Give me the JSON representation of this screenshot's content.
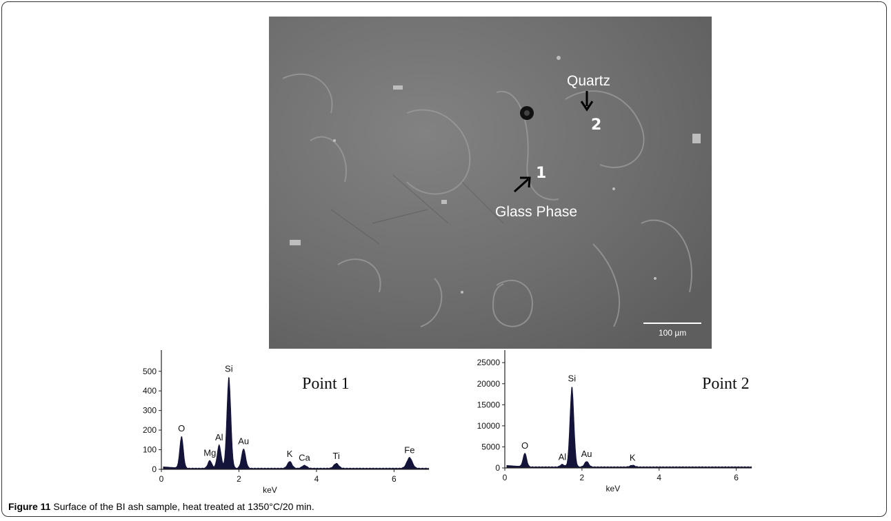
{
  "figure": {
    "caption_label": "Figure 11",
    "caption_text": "Surface of the BI ash sample, heat treated at 1350°C/20 min."
  },
  "sem_image": {
    "labels": {
      "quartz": "Quartz",
      "glass_phase": "Glass Phase",
      "point1": "1",
      "point2": "2"
    },
    "scale_bar": "100 µm"
  },
  "chart_data": [
    {
      "type": "line",
      "title": "Point 1",
      "xlabel": "keV",
      "ylabel": "",
      "xlim": [
        0,
        6.9
      ],
      "ylim": [
        0,
        580
      ],
      "x_ticks": [
        0,
        2,
        4,
        6
      ],
      "y_ticks": [
        0,
        100,
        200,
        300,
        400,
        500
      ],
      "x_tick_labels": [
        "0",
        "2",
        "4",
        "6"
      ],
      "y_tick_labels": [
        "0",
        "100",
        "200",
        "300",
        "400",
        "500"
      ],
      "peaks": [
        {
          "element": "O",
          "kev": 0.52,
          "counts": 165
        },
        {
          "element": "Mg",
          "kev": 1.25,
          "counts": 40
        },
        {
          "element": "Al",
          "kev": 1.49,
          "counts": 120
        },
        {
          "element": "Si",
          "kev": 1.74,
          "counts": 470
        },
        {
          "element": "Au",
          "kev": 2.12,
          "counts": 100
        },
        {
          "element": "K",
          "kev": 3.31,
          "counts": 35
        },
        {
          "element": "Ca",
          "kev": 3.69,
          "counts": 15
        },
        {
          "element": "Ti",
          "kev": 4.51,
          "counts": 25
        },
        {
          "element": "Fe",
          "kev": 6.4,
          "counts": 55
        }
      ]
    },
    {
      "type": "line",
      "title": "Point 2",
      "xlabel": "keV",
      "ylabel": "",
      "xlim": [
        0,
        6.4
      ],
      "ylim": [
        0,
        27000
      ],
      "x_ticks": [
        0,
        2,
        4,
        6
      ],
      "y_ticks": [
        0,
        5000,
        10000,
        15000,
        20000,
        25000
      ],
      "x_tick_labels": [
        "0",
        "2",
        "4",
        "6"
      ],
      "y_tick_labels": [
        "0",
        "5000",
        "10000",
        "15000",
        "20000",
        "25000"
      ],
      "peaks": [
        {
          "element": "O",
          "kev": 0.52,
          "counts": 3300
        },
        {
          "element": "Al",
          "kev": 1.49,
          "counts": 600
        },
        {
          "element": "Si",
          "kev": 1.74,
          "counts": 19200
        },
        {
          "element": "Au",
          "kev": 2.12,
          "counts": 1300
        },
        {
          "element": "K",
          "kev": 3.31,
          "counts": 400
        }
      ]
    }
  ],
  "colors": {
    "spectrum_fill": "#14143a",
    "axis": "#222222"
  }
}
